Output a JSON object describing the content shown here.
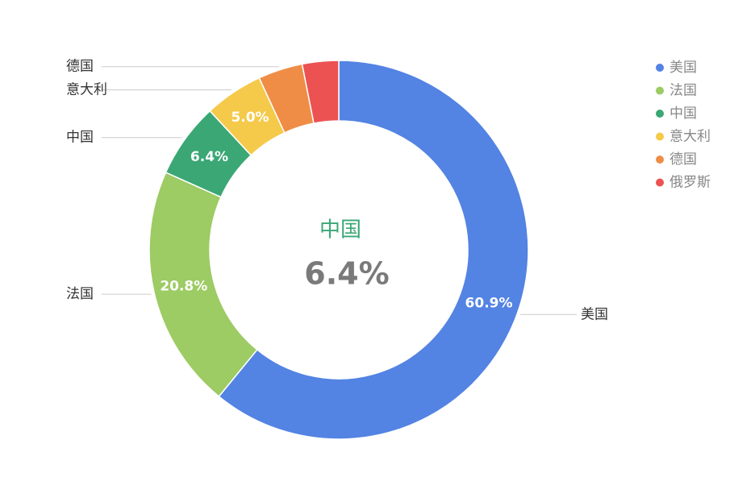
{
  "chart_data": {
    "type": "donut",
    "categories": [
      "美国",
      "法国",
      "中国",
      "意大利",
      "德国",
      "俄罗斯"
    ],
    "values": [
      60.9,
      20.8,
      6.4,
      5.0,
      3.8,
      3.1
    ],
    "value_labels": [
      "60.9%",
      "20.8%",
      "6.4%",
      "5.0%",
      null,
      null
    ],
    "colors": [
      "#5383e3",
      "#9dcb64",
      "#3aa775",
      "#f5c94a",
      "#ef8d47",
      "#ec5252"
    ],
    "legend": "top-right"
  }
}
